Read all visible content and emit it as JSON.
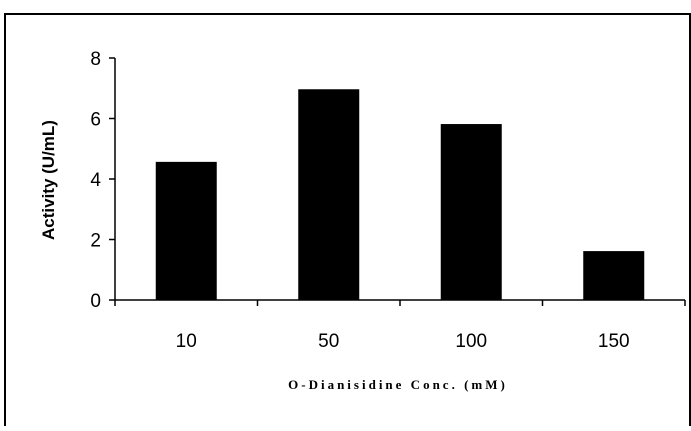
{
  "chart_data": {
    "type": "bar",
    "title": "",
    "categories": [
      "10",
      "50",
      "100",
      "150"
    ],
    "values": [
      4.55,
      6.95,
      5.8,
      1.6
    ],
    "xlabel": "O-Dianisidine Conc. (mM)",
    "ylabel": "Activity (U/mL)",
    "ylim": [
      0,
      8
    ],
    "yticks": [
      "0",
      "2",
      "4",
      "6",
      "8"
    ],
    "grid": false,
    "legend": "none",
    "bar_color": "#000000"
  }
}
